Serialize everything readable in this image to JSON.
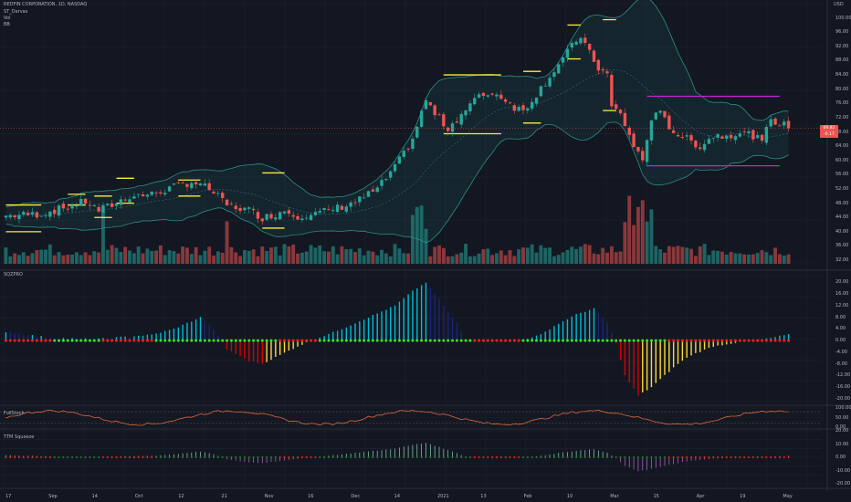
{
  "header": {
    "title": "REDFIN CORPORATION, 1D, NASDAQ",
    "indicators": [
      "ST_Darvas",
      "Vol",
      "BB"
    ],
    "currency": "USD"
  },
  "price_axis": {
    "ticks": [
      "100.00",
      "96.00",
      "92.00",
      "88.00",
      "84.00",
      "80.00",
      "76.00",
      "72.00",
      "68.00",
      "64.00",
      "60.00",
      "56.00",
      "52.00",
      "48.00",
      "44.00",
      "40.00",
      "36.00",
      "32.00"
    ],
    "last_price": "69.82",
    "last_change": "-0.17"
  },
  "panes": {
    "sqz": {
      "title": "SQZPRO",
      "ticks": [
        "20.00",
        "16.00",
        "12.00",
        "8.00",
        "4.00",
        "0.00",
        "-4.00",
        "-8.00",
        "-12.00",
        "-16.00",
        "-20.00"
      ]
    },
    "stoch": {
      "title": "FullStoch",
      "ticks": [
        "100.00",
        "50.00",
        "0.00"
      ]
    },
    "ttm": {
      "title": "TTM Squeeze",
      "ticks": [
        "20.00",
        "10.00",
        "0.00",
        "-10.00",
        "-20.00"
      ]
    }
  },
  "x_axis": {
    "ticks": [
      "17",
      "Sep",
      "14",
      "Oct",
      "12",
      "21",
      "Nov",
      "16",
      "Dec",
      "14",
      "2021",
      "13",
      "Feb",
      "10",
      "Mar",
      "15",
      "Apr",
      "19",
      "May"
    ]
  },
  "colors": {
    "background": "#131722",
    "up": "#26a69a",
    "down": "#ef5350",
    "bb": "#2a8f84",
    "darvas": "#ffeb3b",
    "darvas_alt": "#c026d3",
    "squeeze_on": "#ff1e1e",
    "squeeze_off": "#39e61f",
    "mom_up_strong": "#00bcd4",
    "mom_up_weak": "#1a237e",
    "mom_dn_strong": "#d50000",
    "mom_dn_weak": "#fdd835"
  },
  "chart_data": {
    "type": "candlestick",
    "title": "REDFIN CORPORATION, 1D, NASDAQ",
    "ylim": [
      31,
      104
    ],
    "close_keypoints": [
      [
        0,
        44.5
      ],
      [
        8,
        45
      ],
      [
        14,
        47
      ],
      [
        18,
        48.5
      ],
      [
        21,
        46
      ],
      [
        24,
        47.5
      ],
      [
        28,
        50
      ],
      [
        33,
        50.5
      ],
      [
        38,
        52.5
      ],
      [
        42,
        54
      ],
      [
        46,
        52
      ],
      [
        50,
        47.5
      ],
      [
        55,
        46
      ],
      [
        58,
        44
      ],
      [
        60,
        44.5
      ],
      [
        63,
        46
      ],
      [
        66,
        44.5
      ],
      [
        70,
        45
      ],
      [
        73,
        46
      ],
      [
        77,
        47.5
      ],
      [
        80,
        49
      ],
      [
        84,
        52
      ],
      [
        88,
        58
      ],
      [
        92,
        66
      ],
      [
        95,
        77
      ],
      [
        97,
        73
      ],
      [
        100,
        69
      ],
      [
        103,
        73
      ],
      [
        106,
        77
      ],
      [
        109,
        79
      ],
      [
        112,
        78
      ],
      [
        115,
        75
      ],
      [
        117,
        74
      ],
      [
        119,
        77
      ],
      [
        122,
        82
      ],
      [
        125,
        87
      ],
      [
        128,
        92
      ],
      [
        130,
        95
      ],
      [
        132,
        90
      ],
      [
        134,
        86
      ],
      [
        136,
        84
      ],
      [
        137,
        75
      ],
      [
        139,
        73
      ],
      [
        142,
        64
      ],
      [
        144,
        60
      ],
      [
        146,
        72
      ],
      [
        148,
        73
      ],
      [
        151,
        68
      ],
      [
        154,
        66
      ],
      [
        157,
        64
      ],
      [
        160,
        67
      ],
      [
        163,
        67
      ],
      [
        166,
        68
      ],
      [
        169,
        67
      ],
      [
        171,
        65
      ],
      [
        173,
        72
      ],
      [
        175,
        70
      ],
      [
        177,
        69.8
      ]
    ],
    "darvas_boxes": [
      {
        "x": [
          0,
          8
        ],
        "top": 47.5,
        "bottom": 40.0,
        "color": "yellow"
      },
      {
        "x": [
          14,
          18
        ],
        "top": 50.5,
        "bottom": 47.5,
        "color": "yellow"
      },
      {
        "x": [
          20,
          24
        ],
        "top": 50.0,
        "bottom": 44.0,
        "color": "yellow"
      },
      {
        "x": [
          25,
          29
        ],
        "top": 55.0,
        "bottom": 48.0,
        "color": "yellow"
      },
      {
        "x": [
          39,
          44
        ],
        "top": 54.5,
        "bottom": 50.0,
        "color": "yellow"
      },
      {
        "x": [
          58,
          63
        ],
        "top": 56.5,
        "bottom": 41.0,
        "color": "yellow"
      },
      {
        "x": [
          99,
          112
        ],
        "top": 84.0,
        "bottom": 67.5,
        "color": "yellow"
      },
      {
        "x": [
          117,
          121
        ],
        "top": 85.0,
        "bottom": 70.5,
        "color": "yellow"
      },
      {
        "x": [
          127,
          130
        ],
        "top": 98.0,
        "bottom": 88.5,
        "color": "yellow"
      },
      {
        "x": [
          135,
          138
        ],
        "top": 99.5,
        "bottom": 74.0,
        "color": "yellow"
      },
      {
        "x": [
          145,
          175
        ],
        "top": 78.0,
        "bottom": 58.5,
        "color": "magenta"
      }
    ],
    "volume_ylim": [
      0,
      100
    ],
    "sqzpro": {
      "ylim": [
        -21,
        22
      ],
      "keypoints": [
        [
          0,
          3
        ],
        [
          10,
          1
        ],
        [
          20,
          0.5
        ],
        [
          33,
          2
        ],
        [
          38,
          4
        ],
        [
          44,
          8
        ],
        [
          47,
          4
        ],
        [
          50,
          -3
        ],
        [
          55,
          -7
        ],
        [
          58,
          -8
        ],
        [
          62,
          -5
        ],
        [
          66,
          -2
        ],
        [
          70,
          0.5
        ],
        [
          76,
          4
        ],
        [
          82,
          8
        ],
        [
          88,
          12
        ],
        [
          92,
          17
        ],
        [
          95,
          20
        ],
        [
          98,
          14
        ],
        [
          102,
          6
        ],
        [
          104,
          0
        ],
        [
          110,
          0
        ],
        [
          116,
          0
        ],
        [
          121,
          2
        ],
        [
          124,
          5
        ],
        [
          129,
          9
        ],
        [
          133,
          11
        ],
        [
          136,
          6
        ],
        [
          138,
          -1
        ],
        [
          140,
          -12
        ],
        [
          143,
          -19
        ],
        [
          146,
          -16
        ],
        [
          149,
          -12
        ],
        [
          152,
          -8
        ],
        [
          155,
          -5
        ],
        [
          160,
          -2
        ],
        [
          166,
          -0.5
        ],
        [
          170,
          0
        ],
        [
          175,
          1.5
        ],
        [
          177,
          2
        ]
      ],
      "squeeze_on_ranges": [
        [
          0,
          10
        ],
        [
          22,
          33
        ],
        [
          62,
          70
        ],
        [
          106,
          116
        ],
        [
          150,
          177
        ]
      ]
    },
    "fullstoch": {
      "ylim": [
        0,
        100
      ]
    },
    "ttm_squeeze": {
      "ylim": [
        -20,
        20
      ]
    }
  }
}
